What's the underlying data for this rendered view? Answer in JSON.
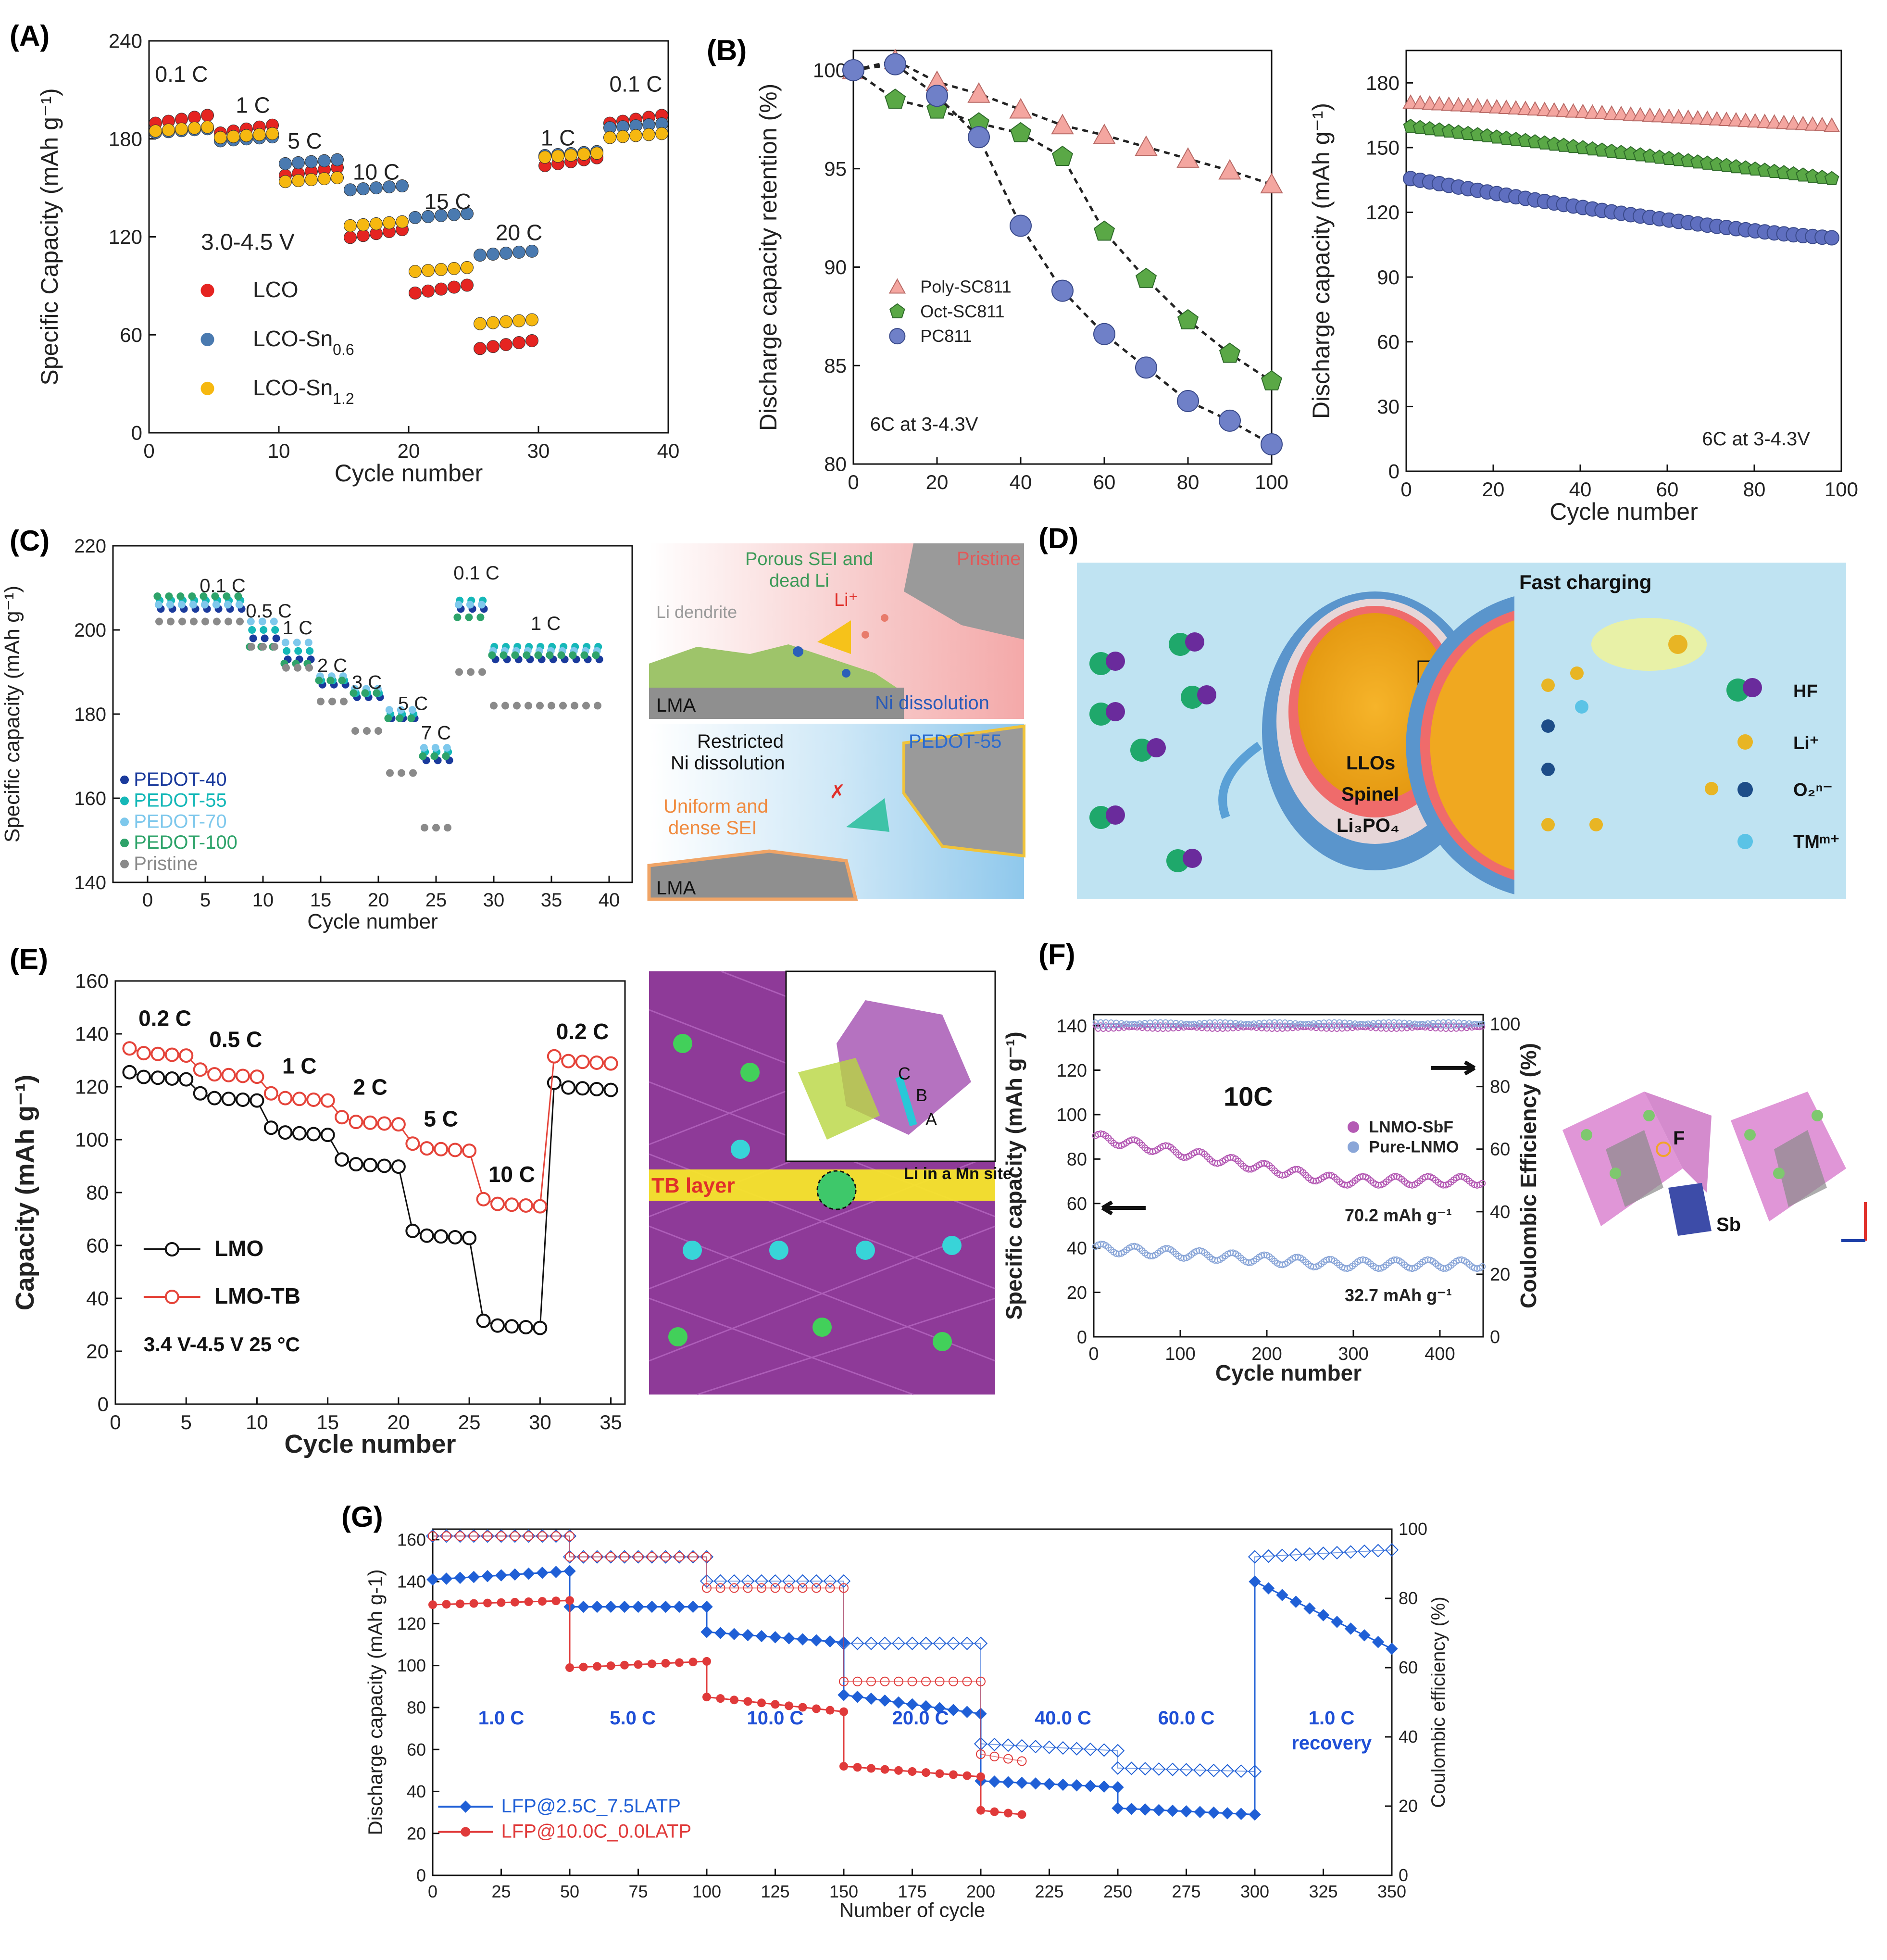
{
  "panels": {
    "A": {
      "letter": "(A)"
    },
    "B": {
      "letter": "(B)"
    },
    "C": {
      "letter": "(C)",
      "schem": {
        "porous_sei": "Porous SEI and",
        "dead_li": "dead Li",
        "pristine": "Pristine",
        "li_dendrite": "Li dendrite",
        "li_ion": "Li⁺",
        "ni_diss": "Ni dissolution",
        "lma": "LMA",
        "restricted": "Restricted",
        "ni_diss2": "Ni dissolution",
        "pedot": "PEDOT-55",
        "uniform": "Uniform and",
        "dense": "dense SEI",
        "lma2": "LMA"
      }
    },
    "D": {
      "letter": "(D)",
      "fast": "Fast charging",
      "llos": "LLOs",
      "spinel": "Spinel",
      "lipo": "Li₃PO₄",
      "legend": [
        {
          "label": "HF"
        },
        {
          "label": "Li⁺"
        },
        {
          "label": "O₂ⁿ⁻"
        },
        {
          "label": "TMᵐ⁺"
        }
      ]
    },
    "E": {
      "letter": "(E)",
      "tb_layer": "TB layer",
      "li_mn": "Li in a Mn site",
      "sites": [
        "C",
        "B",
        "A"
      ]
    },
    "F": {
      "letter": "(F)",
      "f_label": "F",
      "sb_label": "Sb"
    },
    "G": {
      "letter": "(G)"
    }
  },
  "chart_data": [
    {
      "id": "A",
      "type": "scatter",
      "xlabel": "Cycle number",
      "ylabel": "Specific Capacity (mAh g⁻¹)",
      "xlim": [
        0,
        40
      ],
      "ylim": [
        0,
        240
      ],
      "xticks": [
        0,
        10,
        20,
        30,
        40
      ],
      "yticks": [
        0,
        60,
        120,
        180,
        240
      ],
      "annotation_voltage": "3.0-4.5 V",
      "rate_labels": [
        {
          "text": "0.1 C",
          "x": 2.5,
          "y": 215
        },
        {
          "text": "1 C",
          "x": 8,
          "y": 196
        },
        {
          "text": "5 C",
          "x": 12,
          "y": 174
        },
        {
          "text": "10 C",
          "x": 17.5,
          "y": 155
        },
        {
          "text": "15 C",
          "x": 23,
          "y": 137
        },
        {
          "text": "20 C",
          "x": 28.5,
          "y": 118
        },
        {
          "text": "1 C",
          "x": 31.5,
          "y": 176
        },
        {
          "text": "0.1 C",
          "x": 37.5,
          "y": 209
        }
      ],
      "series": [
        {
          "name": "LCO",
          "color": "#e52421",
          "levels": [
            192,
            186,
            160,
            122,
            88,
            54,
            166,
            192
          ]
        },
        {
          "name": "LCO-Sn0.6",
          "color": "#4a7ab0",
          "levels": [
            185,
            180,
            166,
            150,
            133,
            110,
            171,
            188
          ]
        },
        {
          "name": "LCO-Sn1.2",
          "color": "#f6b810",
          "levels": [
            186,
            182,
            155,
            128,
            100,
            68,
            170,
            182
          ]
        }
      ],
      "legend": [
        {
          "label": "LCO",
          "base": "LCO",
          "sub": ""
        },
        {
          "label": "LCO-Sn0.6",
          "base": "LCO-Sn",
          "sub": "0.6"
        },
        {
          "label": "LCO-Sn1.2",
          "base": "LCO-Sn",
          "sub": "1.2"
        }
      ]
    },
    {
      "id": "B1",
      "type": "line",
      "xlabel": "",
      "ylabel": "Discharge capacity retention (%)",
      "xlim": [
        0,
        100
      ],
      "ylim": [
        80,
        101
      ],
      "xticks": [
        0,
        20,
        40,
        60,
        80,
        100
      ],
      "yticks": [
        80,
        85,
        90,
        95,
        100
      ],
      "annotation": "6C at 3-4.3V",
      "x": [
        0,
        10,
        20,
        30,
        40,
        50,
        60,
        70,
        80,
        90,
        100
      ],
      "series": [
        {
          "name": "Poly-SC811",
          "color": "#f4a6a0",
          "marker": "triangle",
          "values": [
            100,
            100.5,
            99.4,
            98.8,
            98.0,
            97.2,
            96.7,
            96.1,
            95.5,
            94.9,
            94.2
          ]
        },
        {
          "name": "Oct-SC811",
          "color": "#5aa846",
          "marker": "pentagon",
          "values": [
            100,
            98.5,
            98.0,
            97.3,
            96.8,
            95.6,
            91.8,
            89.4,
            87.3,
            85.6,
            84.2
          ]
        },
        {
          "name": "PC811",
          "color": "#6f80c8",
          "marker": "circle",
          "values": [
            100,
            100.3,
            98.7,
            96.6,
            92.1,
            88.8,
            86.6,
            84.9,
            83.2,
            82.2,
            81.0
          ]
        }
      ]
    },
    {
      "id": "B2",
      "type": "scatter",
      "xlabel": "Cycle number",
      "ylabel": "Discharge capacity (mAh g⁻¹)",
      "xlim": [
        0,
        100
      ],
      "ylim": [
        0,
        195
      ],
      "xticks": [
        0,
        20,
        40,
        60,
        80,
        100
      ],
      "yticks": [
        0,
        30,
        60,
        90,
        120,
        150,
        180
      ],
      "annotation": "6C at 3-4.3V",
      "series": [
        {
          "name": "Poly-SC811",
          "color": "#f4a6a0",
          "marker": "triangle",
          "start": 171,
          "end": 160
        },
        {
          "name": "Oct-SC811",
          "color": "#5aa846",
          "marker": "pentagon",
          "start": 160,
          "end": 135
        },
        {
          "name": "PC811",
          "color": "#5f6fc0",
          "marker": "circle",
          "start": 136,
          "end": 108
        }
      ]
    },
    {
      "id": "C",
      "type": "scatter",
      "xlabel": "Cycle number",
      "ylabel": "Specific capacity (mAh g⁻¹)",
      "xlim": [
        -3,
        42
      ],
      "ylim": [
        140,
        220
      ],
      "xticks": [
        0,
        5,
        10,
        15,
        20,
        25,
        30,
        35,
        40
      ],
      "yticks": [
        140,
        160,
        180,
        200,
        220
      ],
      "rate_labels": [
        {
          "text": "0.1 C",
          "x": 6.5,
          "y": 209
        },
        {
          "text": "0.5 C",
          "x": 10.5,
          "y": 203
        },
        {
          "text": "1 C",
          "x": 13,
          "y": 199
        },
        {
          "text": "2 C",
          "x": 16,
          "y": 190
        },
        {
          "text": "3 C",
          "x": 19,
          "y": 186
        },
        {
          "text": "5 C",
          "x": 23,
          "y": 181
        },
        {
          "text": "7 C",
          "x": 25,
          "y": 174
        },
        {
          "text": "0.1 C",
          "x": 28.5,
          "y": 212
        },
        {
          "text": "1 C",
          "x": 34.5,
          "y": 200
        }
      ],
      "series": [
        {
          "name": "PEDOT-40",
          "color": "#1a3a9c",
          "levels": [
            205,
            198,
            193,
            187,
            184,
            179,
            169,
            205,
            193
          ]
        },
        {
          "name": "PEDOT-55",
          "color": "#15b8b8",
          "levels": [
            207,
            200,
            195,
            188,
            185,
            180,
            171,
            207,
            196
          ]
        },
        {
          "name": "PEDOT-70",
          "color": "#7ec8ec",
          "levels": [
            206,
            202,
            197,
            189,
            186,
            181,
            172,
            206,
            195
          ]
        },
        {
          "name": "PEDOT-100",
          "color": "#2ea36a",
          "levels": [
            208,
            196,
            192,
            188,
            185,
            179,
            170,
            203,
            194
          ]
        },
        {
          "name": "Pristine",
          "color": "#8a8a8a",
          "levels": [
            202,
            196,
            191,
            183,
            176,
            166,
            153,
            190,
            182
          ]
        }
      ]
    },
    {
      "id": "E",
      "type": "scatter",
      "xlabel": "Cycle number",
      "ylabel": "Capacity (mAh g⁻¹)",
      "xlim": [
        0,
        36
      ],
      "ylim": [
        0,
        160
      ],
      "xticks": [
        0,
        5,
        10,
        15,
        20,
        25,
        30,
        35
      ],
      "yticks": [
        0,
        20,
        40,
        60,
        80,
        100,
        120,
        140,
        160
      ],
      "annotation": "3.4 V-4.5 V   25 °C",
      "rate_labels": [
        {
          "text": "0.2 C",
          "x": 3.5,
          "y": 143
        },
        {
          "text": "0.5 C",
          "x": 8.5,
          "y": 135
        },
        {
          "text": "1 C",
          "x": 13,
          "y": 125
        },
        {
          "text": "2 C",
          "x": 18,
          "y": 117
        },
        {
          "text": "5 C",
          "x": 23,
          "y": 105
        },
        {
          "text": "10 C",
          "x": 28,
          "y": 84
        },
        {
          "text": "0.2 C",
          "x": 33,
          "y": 138
        }
      ],
      "series": [
        {
          "name": "LMO",
          "color": "#111111",
          "levels": [
            124,
            116,
            103,
            91,
            64,
            30,
            120
          ]
        },
        {
          "name": "LMO-TB",
          "color": "#e5443a",
          "levels": [
            133,
            125,
            116,
            107,
            97,
            76,
            130
          ]
        }
      ]
    },
    {
      "id": "F",
      "type": "scatter",
      "xlabel": "Cycle number",
      "ylabel": "Specific capacity (mAh g⁻¹)",
      "y2label": "Coulombic Efficiency (%)",
      "xlim": [
        0,
        450
      ],
      "ylim": [
        0,
        145
      ],
      "y2lim": [
        0,
        103
      ],
      "xticks": [
        0,
        100,
        200,
        300,
        400
      ],
      "yticks": [
        0,
        20,
        40,
        60,
        80,
        100,
        120,
        140
      ],
      "y2ticks": [
        0,
        20,
        40,
        60,
        80,
        100
      ],
      "annotation": "10C",
      "end_label_1": "70.2 mAh g⁻¹",
      "end_label_2": "32.7 mAh g⁻¹",
      "series": [
        {
          "name": "LNMO-SbF",
          "color": "#b45ab4",
          "capacity_start": 90,
          "capacity_end": 70.2,
          "ce": 99
        },
        {
          "name": "Pure-LNMO",
          "color": "#8aa6d8",
          "capacity_start": 40,
          "capacity_end": 32.7,
          "ce": 100
        }
      ]
    },
    {
      "id": "G",
      "type": "line",
      "xlabel": "Number of cycle",
      "ylabel": "Discharge capacity (mAh g-1)",
      "y2label": "Coulombic efficiency (%)",
      "xlim": [
        0,
        350
      ],
      "ylim": [
        0,
        165
      ],
      "y2lim": [
        0,
        100
      ],
      "xticks": [
        0,
        25,
        50,
        75,
        100,
        125,
        150,
        175,
        200,
        225,
        250,
        275,
        300,
        325,
        350
      ],
      "yticks": [
        0,
        20,
        40,
        60,
        80,
        100,
        120,
        140,
        160
      ],
      "y2ticks": [
        0,
        20,
        40,
        60,
        80,
        100
      ],
      "rate_labels": [
        {
          "text": "1.0 C",
          "x": 25,
          "y": 72
        },
        {
          "text": "5.0 C",
          "x": 73,
          "y": 72
        },
        {
          "text": "10.0 C",
          "x": 125,
          "y": 72
        },
        {
          "text": "20.0 C",
          "x": 178,
          "y": 72
        },
        {
          "text": "40.0 C",
          "x": 230,
          "y": 72
        },
        {
          "text": "60.0 C",
          "x": 275,
          "y": 72
        },
        {
          "text": "1.0 C",
          "x": 328,
          "y": 72
        },
        {
          "text": "recovery",
          "x": 328,
          "y": 60
        }
      ],
      "series": [
        {
          "name": "LFP@2.5C_7.5LATP",
          "color": "#1f5fd6",
          "segments": [
            [
              0,
              50,
              141,
              145
            ],
            [
              50,
              100,
              128,
              128
            ],
            [
              100,
              150,
              116,
              111
            ],
            [
              150,
              200,
              86,
              77
            ],
            [
              200,
              250,
              45,
              42
            ],
            [
              250,
              300,
              32,
              29
            ],
            [
              300,
              350,
              140,
              108
            ]
          ],
          "ce": [
            [
              0,
              50,
              98,
              98
            ],
            [
              50,
              100,
              92,
              92
            ],
            [
              100,
              150,
              85,
              85
            ],
            [
              150,
              200,
              67,
              67
            ],
            [
              200,
              250,
              38,
              36
            ],
            [
              250,
              300,
              31,
              30
            ],
            [
              300,
              350,
              92,
              94
            ]
          ]
        },
        {
          "name": "LFP@10.0C_0.0LATP",
          "color": "#e03a3a",
          "segments": [
            [
              0,
              50,
              129,
              131
            ],
            [
              50,
              100,
              99,
              102
            ],
            [
              100,
              150,
              85,
              78
            ],
            [
              150,
              200,
              52,
              47
            ],
            [
              200,
              215,
              31,
              29
            ]
          ],
          "ce": [
            [
              0,
              50,
              98,
              98
            ],
            [
              50,
              100,
              92,
              92
            ],
            [
              100,
              150,
              83,
              83
            ],
            [
              150,
              200,
              56,
              56
            ],
            [
              200,
              215,
              35,
              33
            ]
          ]
        }
      ]
    }
  ]
}
